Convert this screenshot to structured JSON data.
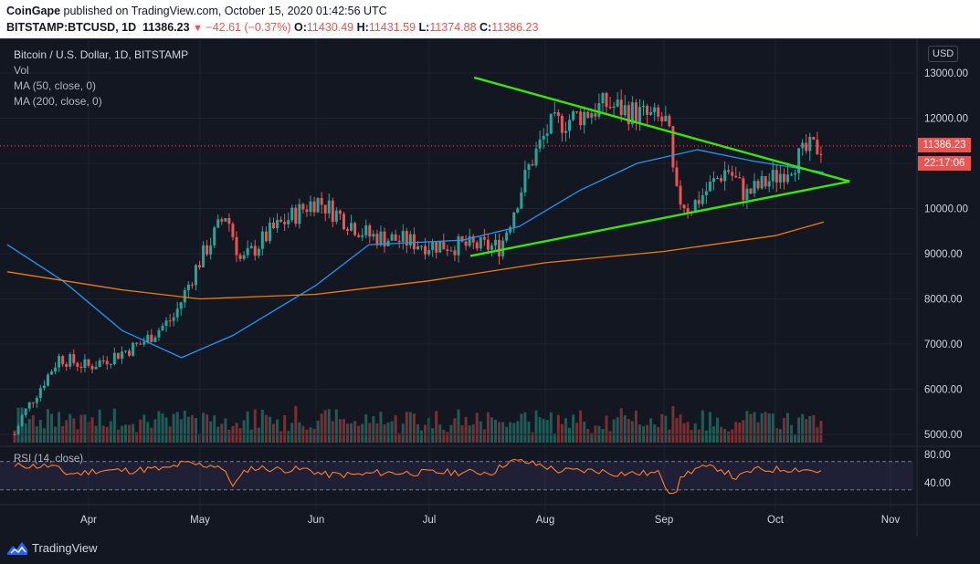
{
  "header": {
    "publisher": "CoinGape",
    "published_text": "published on TradingView.com, October 15, 2020 01:42:56 UTC",
    "symbol": "BITSTAMP:BTCUSD, 1D",
    "last": "11386.23",
    "change": "−42.61 (−0.37%)",
    "o_label": "O:",
    "o_value": "11430.49",
    "h_label": "H:",
    "h_value": "11431.59",
    "l_label": "L:",
    "l_value": "11374.88",
    "c_label": "C:",
    "c_value": "11386.23"
  },
  "legend": {
    "title": "Bitcoin / U.S. Dollar, 1D, BITSTAMP",
    "vol": "Vol",
    "ma50": "MA (50, close, 0)",
    "ma200": "MA (200, close, 0)"
  },
  "currency_button": "USD",
  "price_tag": "11386.23",
  "time_tag": "22:17:06",
  "rsi_label": "RSI (14, close)",
  "footer": {
    "brand": "TradingView"
  },
  "colors": {
    "bull": "#26a69a",
    "bear": "#ef5350",
    "ma50": "#2196f3",
    "ma200": "#f57c00",
    "triangle": "#39e600",
    "rsi": "#ff7f27",
    "rsi_band": "#7e57c2"
  },
  "chart_data": {
    "type": "candlestick",
    "title": "Bitcoin / U.S. Dollar, 1D, BITSTAMP",
    "y_axis": {
      "ticks": [
        13000,
        12000,
        11000,
        10000,
        9000,
        8000,
        7000,
        6000,
        5000
      ],
      "labels": [
        "13000.00",
        "12000.00",
        "11000.00",
        "10000.00",
        "9000.00",
        "8000.00",
        "7000.00",
        "6000.00",
        "5000.00"
      ]
    },
    "x_axis": {
      "labels": [
        "Apr",
        "May",
        "Jun",
        "Jul",
        "Aug",
        "Sep",
        "Oct",
        "Nov"
      ]
    },
    "price_key_points": [
      {
        "date": "Mar 12",
        "close": 5000
      },
      {
        "date": "Mar 14",
        "close": 5400
      },
      {
        "date": "Mar 24",
        "close": 6700
      },
      {
        "date": "Apr 1",
        "close": 6500
      },
      {
        "date": "Apr 15",
        "close": 7000
      },
      {
        "date": "Apr 24",
        "close": 7600
      },
      {
        "date": "Apr 30",
        "close": 8700
      },
      {
        "date": "May 8",
        "close": 9900
      },
      {
        "date": "May 12",
        "close": 8800
      },
      {
        "date": "May 20",
        "close": 9500
      },
      {
        "date": "Jun 1",
        "close": 10200
      },
      {
        "date": "Jun 15",
        "close": 9400
      },
      {
        "date": "Jul 1",
        "close": 9200
      },
      {
        "date": "Jul 20",
        "close": 9150
      },
      {
        "date": "Jul 28",
        "close": 11000
      },
      {
        "date": "Aug 2",
        "close": 11800
      },
      {
        "date": "Aug 17",
        "close": 12300
      },
      {
        "date": "Sep 2",
        "close": 11900
      },
      {
        "date": "Sep 4",
        "close": 10300
      },
      {
        "date": "Sep 8",
        "close": 10000
      },
      {
        "date": "Sep 18",
        "close": 10900
      },
      {
        "date": "Sep 23",
        "close": 10300
      },
      {
        "date": "Oct 1",
        "close": 10700
      },
      {
        "date": "Oct 10",
        "close": 11300
      },
      {
        "date": "Oct 14",
        "close": 11386.23
      }
    ],
    "ma50_key_points": [
      {
        "date": "Mar 10",
        "value": 9200
      },
      {
        "date": "Mar 25",
        "value": 8400
      },
      {
        "date": "Apr 10",
        "value": 7300
      },
      {
        "date": "Apr 26",
        "value": 6700
      },
      {
        "date": "May 10",
        "value": 7200
      },
      {
        "date": "Jun 1",
        "value": 8300
      },
      {
        "date": "Jun 15",
        "value": 9200
      },
      {
        "date": "Jul 10",
        "value": 9300
      },
      {
        "date": "Jul 25",
        "value": 9600
      },
      {
        "date": "Aug 10",
        "value": 10400
      },
      {
        "date": "Aug 25",
        "value": 11000
      },
      {
        "date": "Sep 10",
        "value": 11300
      },
      {
        "date": "Sep 25",
        "value": 11050
      },
      {
        "date": "Oct 14",
        "value": 10800
      }
    ],
    "ma200_key_points": [
      {
        "date": "Mar 10",
        "value": 8600
      },
      {
        "date": "Apr 10",
        "value": 8200
      },
      {
        "date": "May 1",
        "value": 8000
      },
      {
        "date": "Jun 1",
        "value": 8100
      },
      {
        "date": "Jul 1",
        "value": 8400
      },
      {
        "date": "Aug 1",
        "value": 8800
      },
      {
        "date": "Sep 1",
        "value": 9050
      },
      {
        "date": "Oct 1",
        "value": 9400
      },
      {
        "date": "Oct 14",
        "value": 9700
      }
    ],
    "rsi": {
      "levels": [
        70,
        30
      ],
      "tick_labels": [
        "80.00",
        "40.00"
      ]
    }
  }
}
